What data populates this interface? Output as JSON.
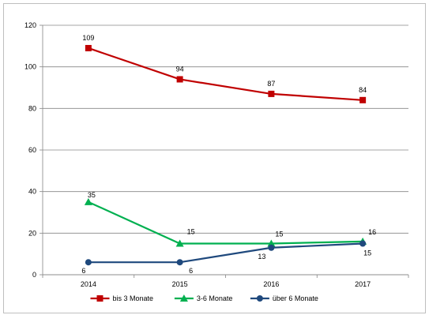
{
  "chart_data": {
    "type": "line",
    "title": "",
    "xlabel": "",
    "ylabel": "",
    "categories": [
      "2014",
      "2015",
      "2016",
      "2017"
    ],
    "ylim": [
      0,
      120
    ],
    "yticks": [
      "0",
      "20",
      "40",
      "60",
      "80",
      "100",
      "120"
    ],
    "grid": true,
    "legend_position": "bottom",
    "series": [
      {
        "name": "bis 3 Monate",
        "values": [
          109,
          94,
          87,
          84
        ],
        "color": "#c00000",
        "marker": "square"
      },
      {
        "name": "3-6 Monate",
        "values": [
          35,
          15,
          15,
          16
        ],
        "color": "#00b050",
        "marker": "triangle"
      },
      {
        "name": "über 6 Monate",
        "values": [
          6,
          6,
          13,
          15
        ],
        "color": "#1f497d",
        "marker": "circle"
      }
    ]
  }
}
